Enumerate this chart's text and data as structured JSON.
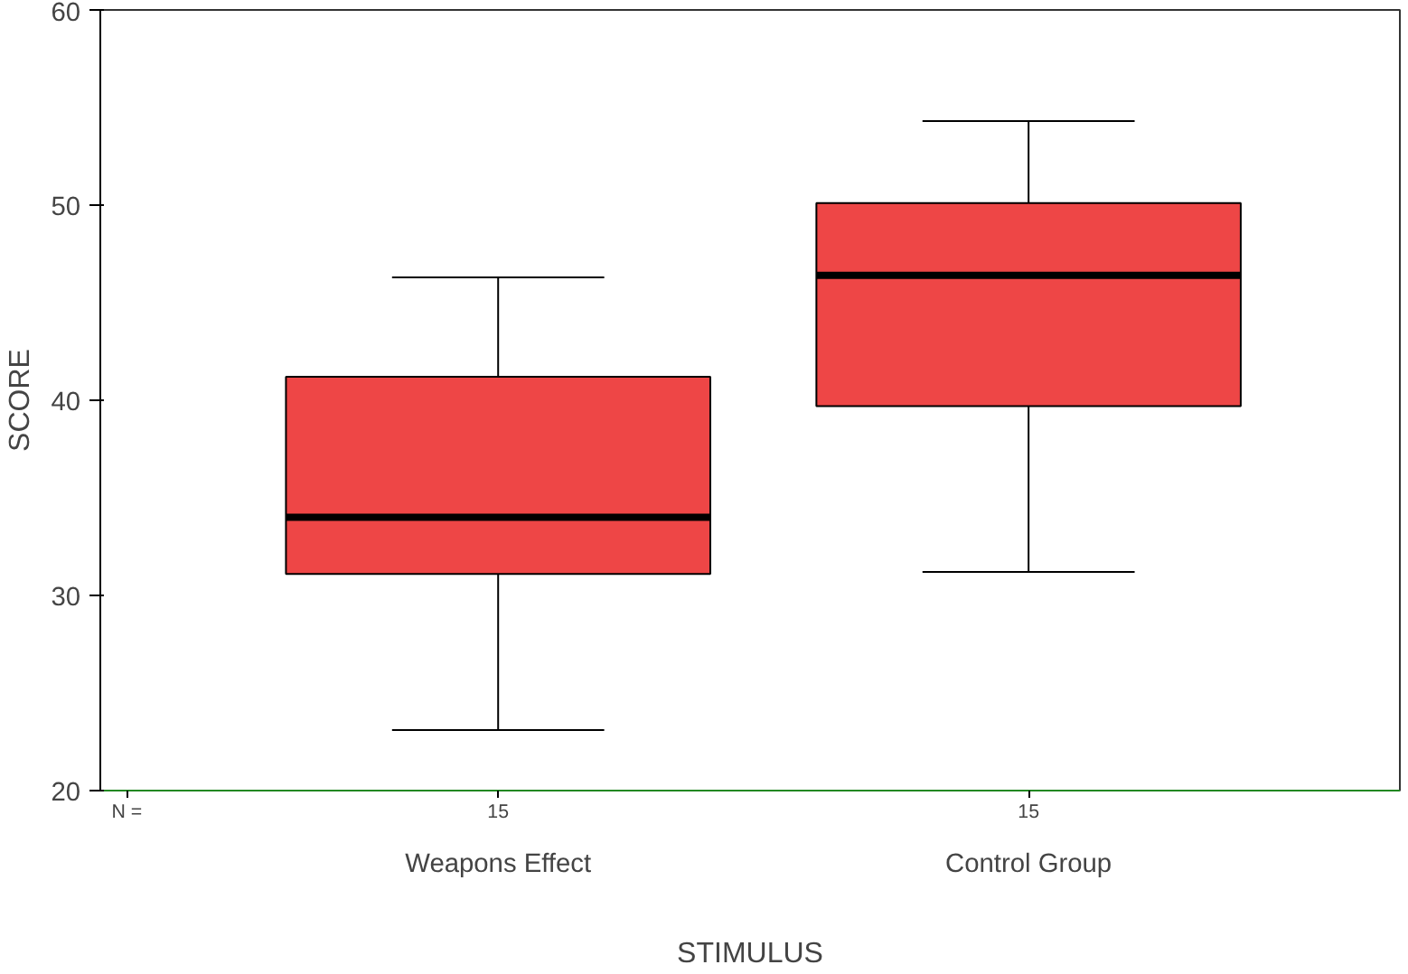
{
  "chart_data": {
    "type": "box",
    "xlabel": "STIMULUS",
    "ylabel": "SCORE",
    "categories": [
      "Weapons Effect",
      "Control Group"
    ],
    "boxes": [
      {
        "low": 23.1,
        "q1": 31.1,
        "median": 34.0,
        "q3": 41.2,
        "high": 46.3
      },
      {
        "low": 31.2,
        "q1": 39.7,
        "median": 46.4,
        "q3": 50.1,
        "high": 54.3
      }
    ],
    "color": "#ee4646",
    "ylim": [
      20,
      60
    ],
    "yticks": [
      20,
      30,
      40,
      50,
      60
    ],
    "grid": false,
    "annotations": [
      "N =",
      "15",
      "15"
    ]
  }
}
